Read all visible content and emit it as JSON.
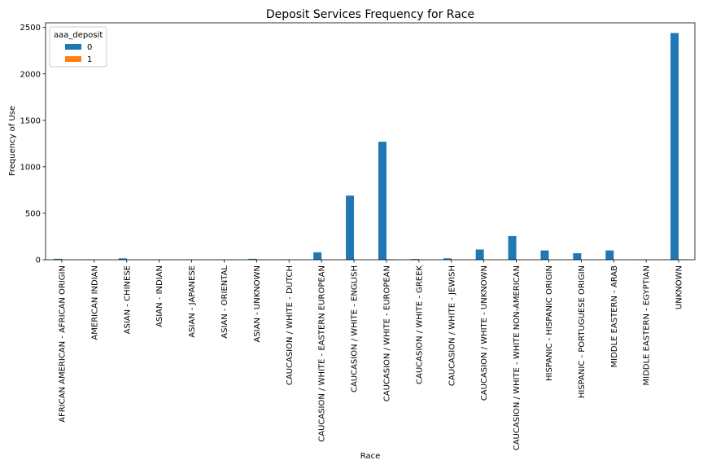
{
  "chart_data": {
    "type": "bar",
    "title": "Deposit Services Frequency for Race",
    "xlabel": "Race",
    "ylabel": "Frequency of Use",
    "ylim": [
      0,
      2550
    ],
    "yticks": [
      0,
      500,
      1000,
      1500,
      2000,
      2500
    ],
    "grid": false,
    "legend": {
      "title": "aaa_deposit",
      "placement": "top-left"
    },
    "categories": [
      "AFRICAN AMERICAN - AFRICAN ORIGIN",
      "AMERICAN INDIAN",
      "ASIAN - CHINESE",
      "ASIAN - INDIAN",
      "ASIAN - JAPANESE",
      "ASIAN - ORIENTAL",
      "ASIAN - UNKNOWN",
      "CAUCASION / WHITE - DUTCH",
      "CAUCASION / WHITE - EASTERN EUROPEAN",
      "CAUCASION / WHITE - ENGLISH",
      "CAUCASION / WHITE - EUROPEAN",
      "CAUCASION / WHITE - GREEK",
      "CAUCASION / WHITE - JEWISH",
      "CAUCASION / WHITE - UNKNOWN",
      "CAUCASION / WHITE - WHITE NON-AMERICAN",
      "HISPANIC - HISPANIC ORIGIN",
      "HISPANIC - PORTUGUESE ORIGIN",
      "MIDDLE EASTERN - ARAB",
      "MIDDLE EASTERN - EGYPTIAN",
      "UNKNOWN"
    ],
    "series": [
      {
        "name": "0",
        "color": "#1f77b4",
        "values": [
          10,
          2,
          15,
          2,
          3,
          2,
          10,
          3,
          80,
          690,
          1270,
          8,
          15,
          110,
          255,
          100,
          70,
          100,
          3,
          2440
        ]
      },
      {
        "name": "1",
        "color": "#ff7f0e",
        "values": [
          0,
          0,
          0,
          0,
          0,
          0,
          0,
          0,
          0,
          0,
          5,
          0,
          0,
          0,
          0,
          0,
          0,
          0,
          0,
          5
        ]
      }
    ]
  }
}
